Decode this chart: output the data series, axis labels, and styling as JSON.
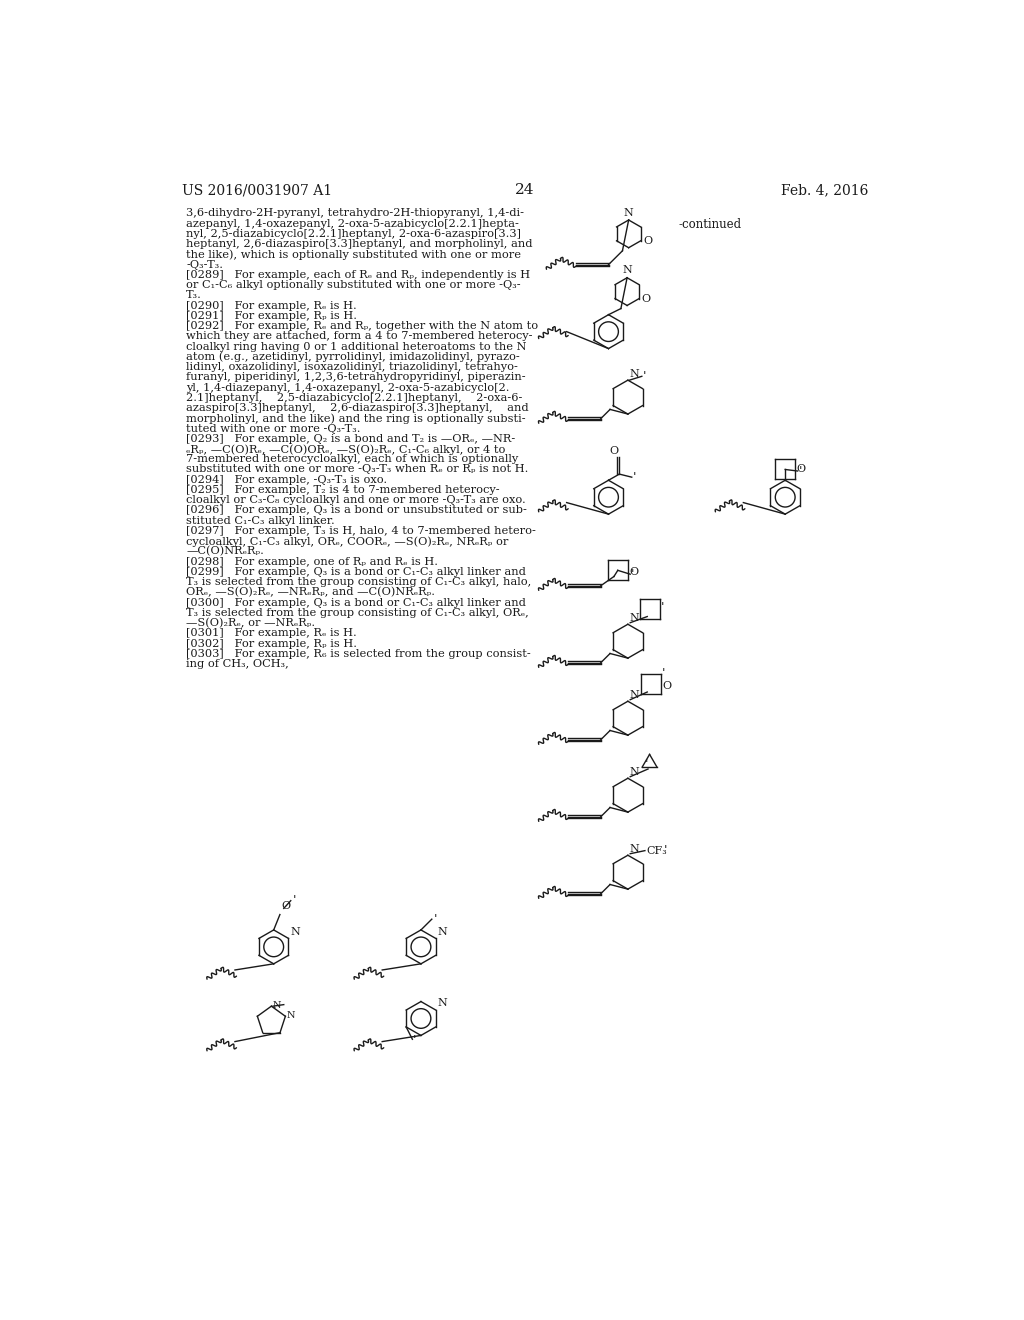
{
  "page_number": "24",
  "header_left": "US 2016/0031907 A1",
  "header_right": "Feb. 4, 2016",
  "background_color": "#ffffff",
  "text_color": "#000000",
  "font_size_header": 10,
  "font_size_body": 8.2,
  "continued_label": "-continued"
}
